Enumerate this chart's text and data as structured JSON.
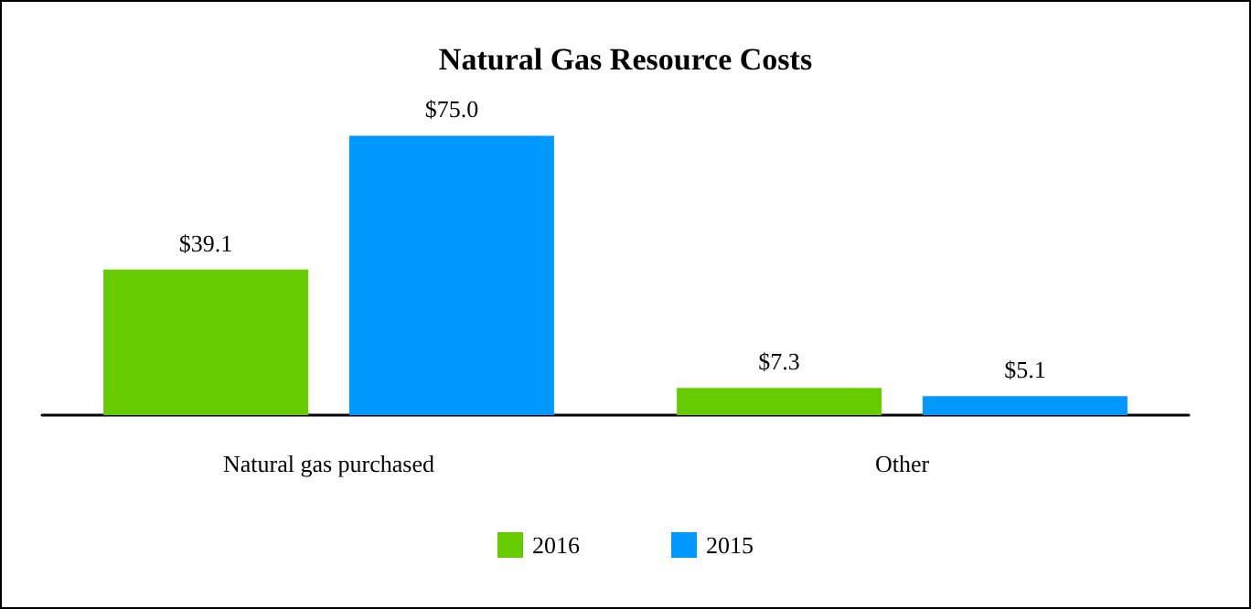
{
  "chart_data": {
    "type": "bar",
    "title": "Natural Gas Resource Costs",
    "categories": [
      "Natural gas purchased",
      "Other"
    ],
    "series": [
      {
        "name": "2016",
        "color": "#66cc00",
        "values": [
          39.1,
          7.3
        ],
        "value_labels": [
          "$39.1",
          "$7.3"
        ]
      },
      {
        "name": "2015",
        "color": "#0099ff",
        "values": [
          75.0,
          5.1
        ],
        "value_labels": [
          "$75.0",
          "$5.1"
        ]
      }
    ],
    "legend": "bottom"
  }
}
